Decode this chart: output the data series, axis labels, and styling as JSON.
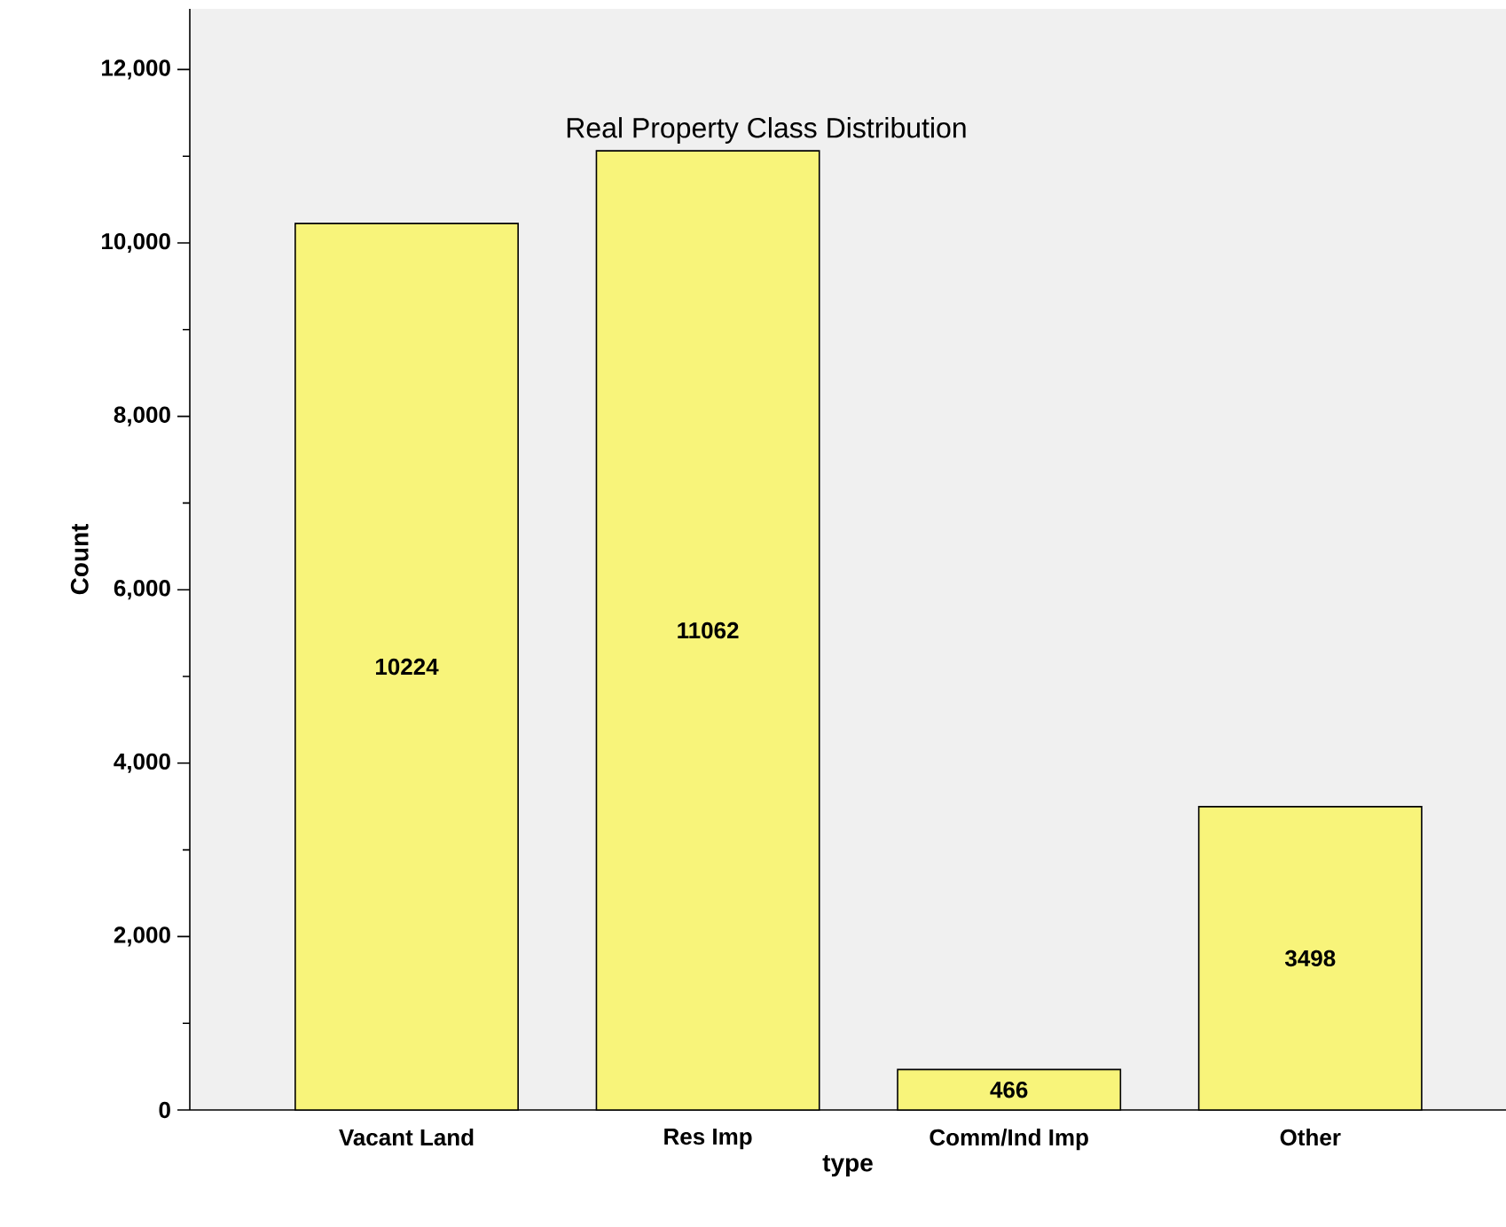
{
  "chart_data": {
    "type": "bar",
    "title": "Real Property Class Distribution",
    "xlabel": "type",
    "ylabel": "Count",
    "categories": [
      "Vacant Land",
      "Res Imp",
      "Comm/Ind Imp",
      "Other"
    ],
    "values": [
      10224,
      11062,
      466,
      3498
    ],
    "color": "#f8f47a",
    "data_labels": true,
    "ylim": [
      0,
      12700
    ],
    "yticks": [
      {
        "value": 0,
        "label": "0"
      },
      {
        "value": 2000,
        "label": "2,000"
      },
      {
        "value": 4000,
        "label": "4,000"
      },
      {
        "value": 6000,
        "label": "6,000"
      },
      {
        "value": 8000,
        "label": "8,000"
      },
      {
        "value": 10000,
        "label": "10,000"
      },
      {
        "value": 12000,
        "label": "12,000"
      }
    ],
    "grid": false
  }
}
